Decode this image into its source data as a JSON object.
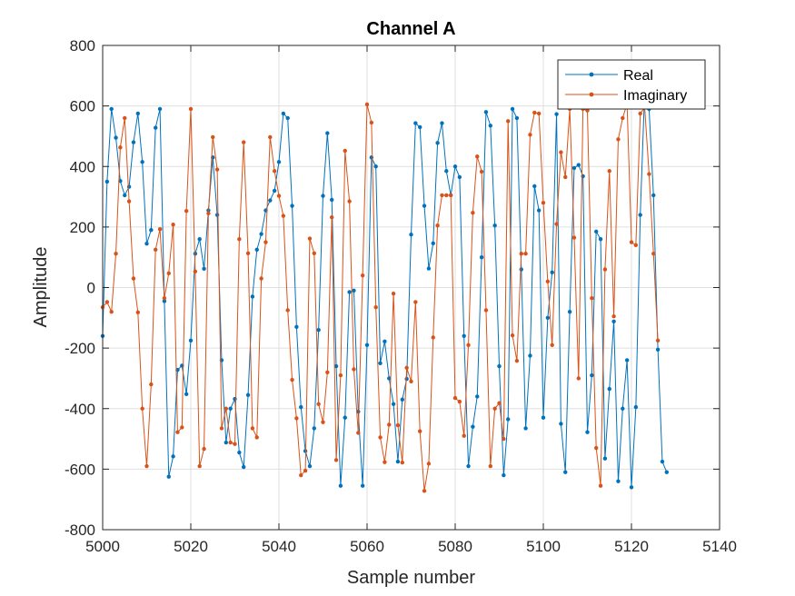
{
  "chart_data": {
    "type": "line",
    "title": "Channel A",
    "xlabel": "Sample number",
    "ylabel": "Amplitude",
    "xlim": [
      5000,
      5140
    ],
    "ylim": [
      -800,
      800
    ],
    "xticks": [
      5000,
      5020,
      5040,
      5060,
      5080,
      5100,
      5120,
      5140
    ],
    "yticks": [
      -800,
      -600,
      -400,
      -200,
      0,
      200,
      400,
      600,
      800
    ],
    "grid": true,
    "legend_position": "top-right",
    "x_start": 5000,
    "series": [
      {
        "name": "Real",
        "color": "#0072BD",
        "values": [
          -160,
          350,
          590,
          495,
          352,
          305,
          333,
          480,
          575,
          415,
          145,
          190,
          528,
          590,
          -45,
          -625,
          -558,
          -272,
          -258,
          -352,
          -175,
          112,
          160,
          62,
          255,
          430,
          240,
          -240,
          -512,
          -400,
          -368,
          -545,
          -593,
          -355,
          -30,
          125,
          177,
          255,
          288,
          320,
          415,
          575,
          560,
          270,
          -130,
          -395,
          -540,
          -590,
          -465,
          -140,
          303,
          510,
          290,
          -260,
          -655,
          -430,
          -15,
          -10,
          -410,
          -655,
          -190,
          430,
          400,
          -250,
          -178,
          -300,
          -385,
          -575,
          -370,
          -302,
          175,
          543,
          530,
          270,
          63,
          146,
          478,
          543,
          385,
          305,
          400,
          365,
          -160,
          -590,
          -460,
          -360,
          100,
          580,
          535,
          205,
          -260,
          -620,
          -435,
          590,
          560,
          60,
          -465,
          -225,
          335,
          255,
          -430,
          -100,
          50,
          573,
          -450,
          -610,
          -80,
          395,
          405,
          368,
          -478,
          -290,
          185,
          160,
          -565,
          -335,
          -112,
          -640,
          -400,
          -240,
          -660,
          -395,
          240,
          650,
          590,
          305,
          -205,
          -575,
          -610
        ]
      },
      {
        "name": "Imaginary",
        "color": "#D95319",
        "values": [
          -65,
          -48,
          -80,
          112,
          463,
          560,
          285,
          30,
          -82,
          -400,
          -590,
          -320,
          125,
          193,
          -35,
          47,
          208,
          -478,
          -462,
          253,
          590,
          53,
          -590,
          -533,
          245,
          497,
          390,
          -465,
          -400,
          -512,
          -517,
          160,
          480,
          113,
          -465,
          -495,
          30,
          150,
          497,
          385,
          303,
          237,
          -75,
          -305,
          -432,
          -620,
          -605,
          162,
          113,
          -385,
          -445,
          -280,
          232,
          -570,
          -290,
          452,
          285,
          -270,
          -480,
          40,
          605,
          545,
          -65,
          -495,
          -577,
          -453,
          -20,
          -455,
          -578,
          -265,
          -310,
          -48,
          -475,
          -672,
          -582,
          -165,
          205,
          305,
          305,
          305,
          -365,
          -377,
          -490,
          -190,
          247,
          433,
          383,
          -75,
          -590,
          -400,
          -382,
          -500,
          550,
          -158,
          -242,
          112,
          112,
          505,
          578,
          575,
          280,
          20,
          -190,
          210,
          447,
          365,
          590,
          165,
          -300,
          590,
          585,
          -35,
          -530,
          -655,
          60,
          385,
          -95,
          490,
          560,
          607,
          150,
          140,
          575,
          595,
          375,
          112,
          -175
        ]
      }
    ]
  }
}
